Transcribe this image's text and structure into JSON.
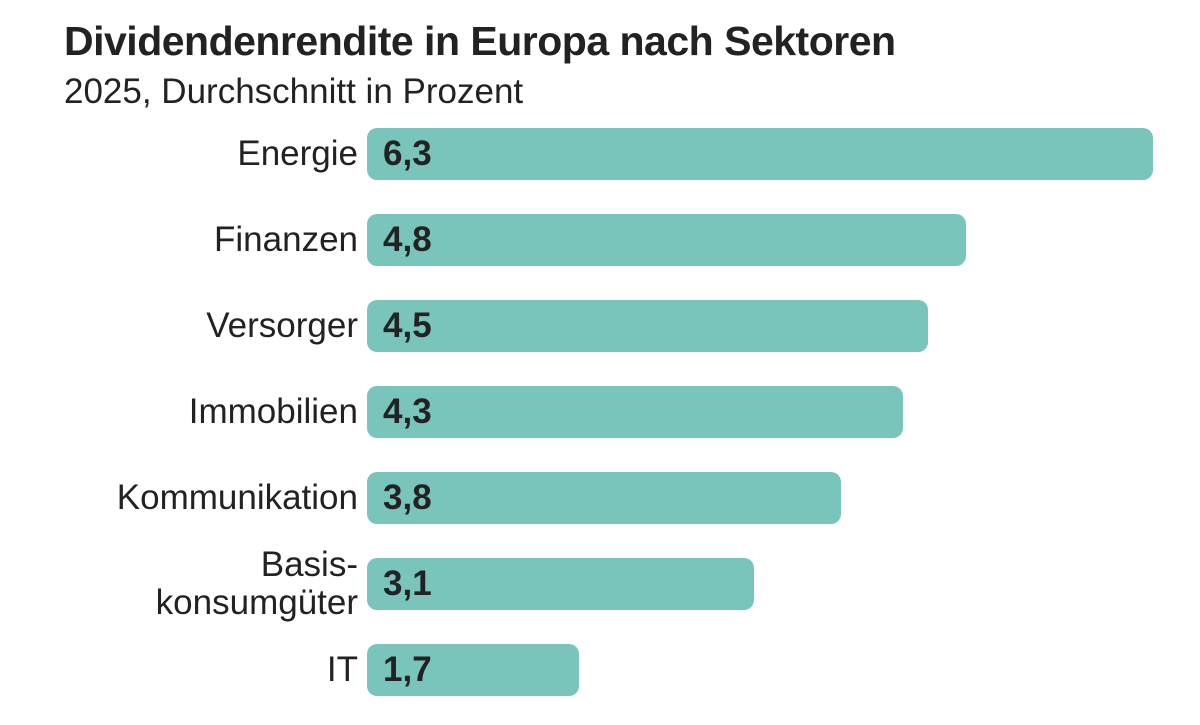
{
  "chart_data": {
    "type": "bar",
    "orientation": "horizontal",
    "title": "Dividendenrendite in Europa nach Sektoren",
    "subtitle": "2025, Durchschnitt in Prozent",
    "categories": [
      "Energie",
      "Finanzen",
      "Versorger",
      "Immobilien",
      "Kommunikation",
      "Basis-\nkonsumgüter",
      "IT"
    ],
    "values": [
      6.3,
      4.8,
      4.5,
      4.3,
      3.8,
      3.1,
      1.7
    ],
    "value_labels": [
      "6,3",
      "4,8",
      "4,5",
      "4,3",
      "3,8",
      "3,1",
      "1,7"
    ],
    "xlim": [
      0,
      6.3
    ],
    "grid": false,
    "bar_color": "#79C4BB"
  }
}
